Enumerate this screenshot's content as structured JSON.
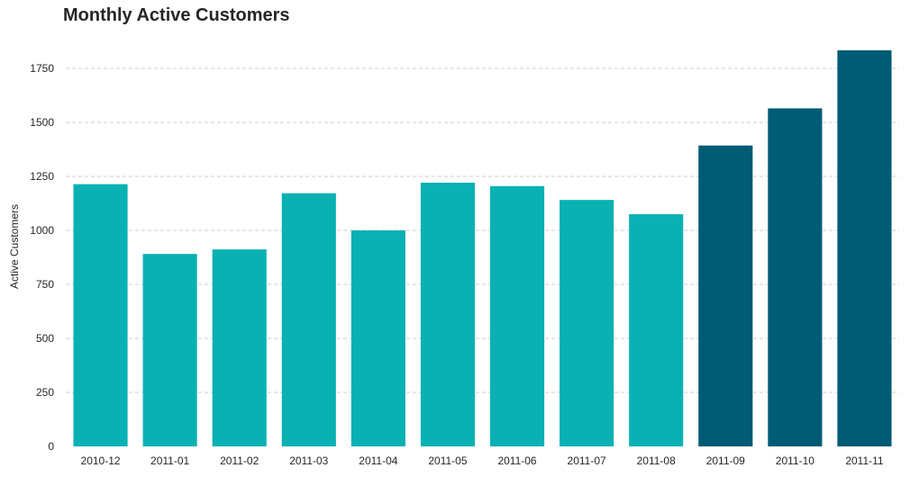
{
  "chart_data": {
    "type": "bar",
    "title": "Monthly Active Customers",
    "xlabel": "",
    "ylabel": "Active Customers",
    "categories": [
      "2010-12",
      "2011-01",
      "2011-02",
      "2011-03",
      "2011-04",
      "2011-05",
      "2011-06",
      "2011-07",
      "2011-08",
      "2011-09",
      "2011-10",
      "2011-11"
    ],
    "values": [
      1214,
      891,
      912,
      1172,
      1000,
      1221,
      1205,
      1141,
      1075,
      1393,
      1565,
      1834
    ],
    "ylim": [
      0,
      1900
    ],
    "yticks": [
      0,
      250,
      500,
      750,
      1000,
      1250,
      1500,
      1750
    ],
    "grid": "y dashed",
    "colors": {
      "base": "#09b1b3",
      "highlight": "#005b74",
      "grid": "#cccccc",
      "text": "#262626"
    },
    "highlighted_categories": [
      "2011-09",
      "2011-10",
      "2011-11"
    ]
  }
}
